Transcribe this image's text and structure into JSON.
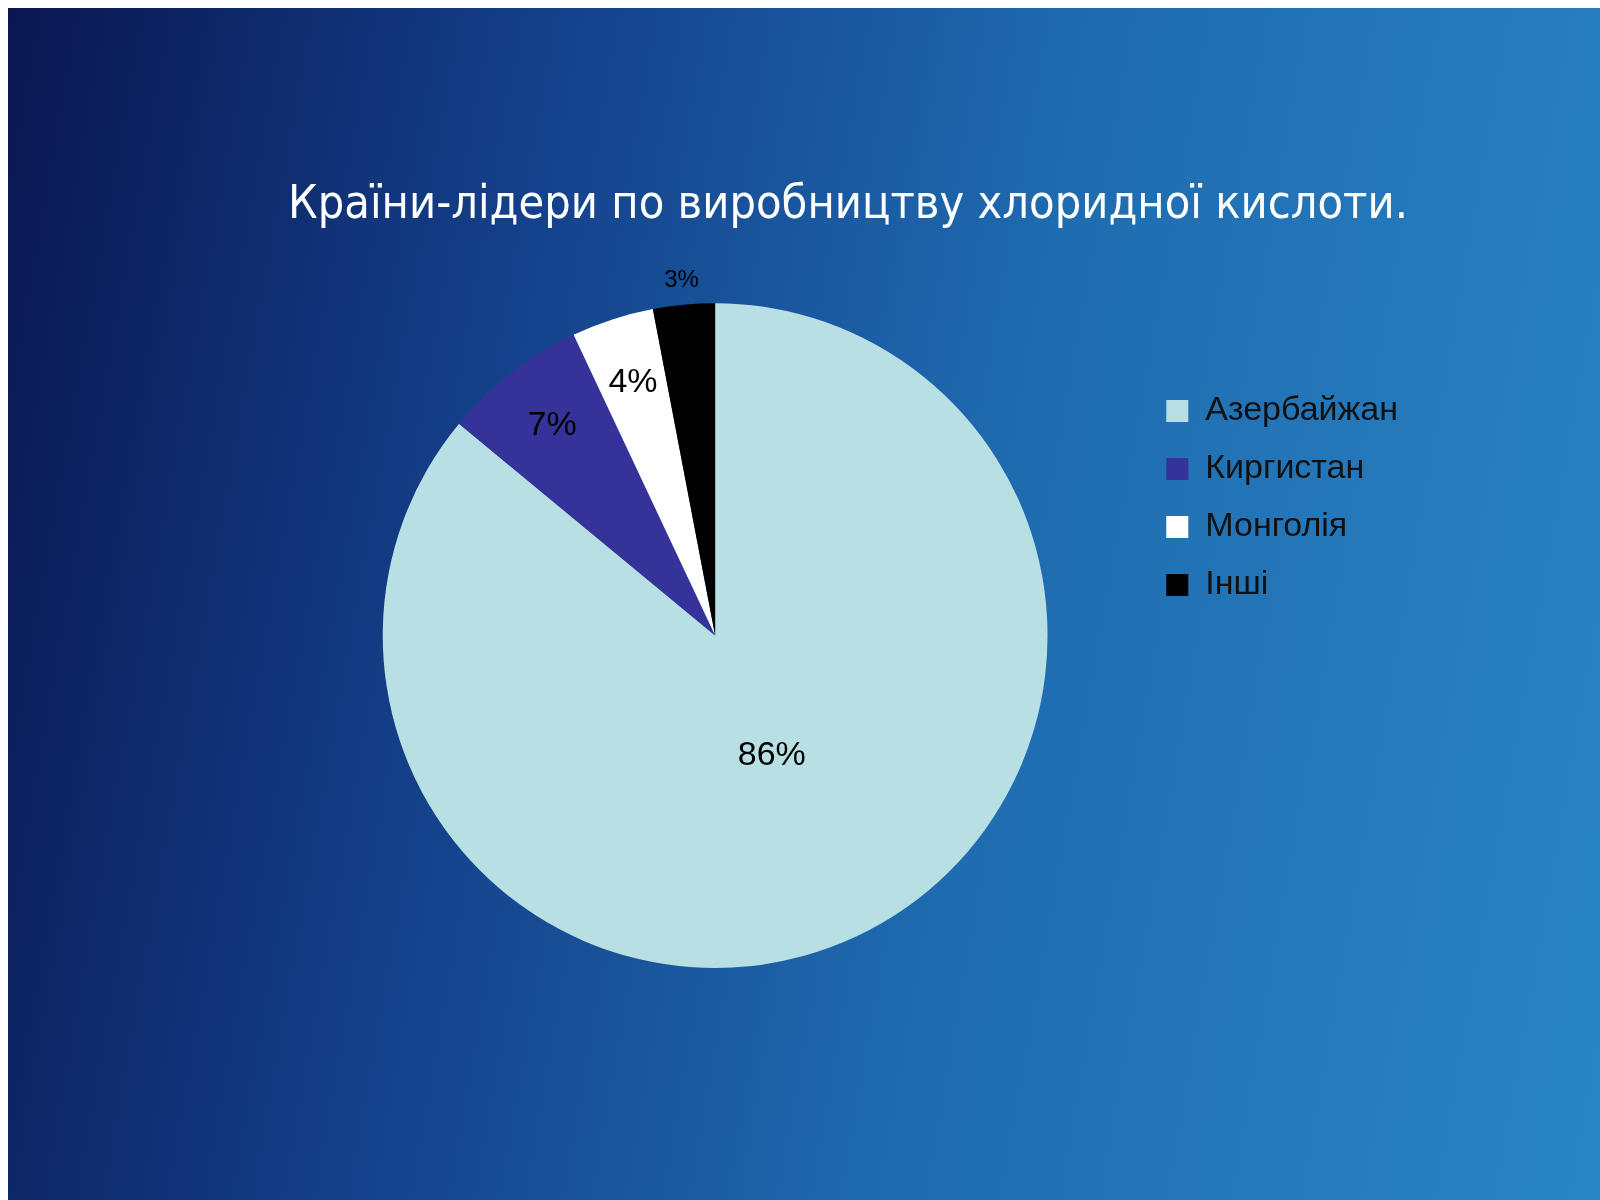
{
  "chart_data": {
    "type": "pie",
    "title": "Країни-лідери по виробництву хлоридної кислоти.",
    "categories": [
      "Азербайжан",
      "Киргистан",
      "Монголія",
      "Інші"
    ],
    "values": [
      86,
      7,
      4,
      3
    ],
    "colors": [
      "#b8dfe3",
      "#353399",
      "#ffffff",
      "#000000"
    ],
    "value_labels": [
      "86%",
      "7%",
      "4%",
      "3%"
    ],
    "legend": "right"
  }
}
